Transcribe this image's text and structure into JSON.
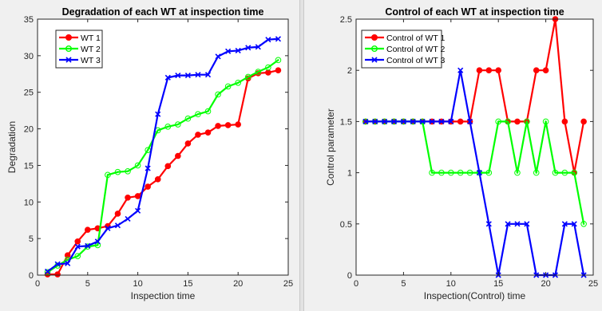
{
  "chart_data": [
    {
      "type": "line",
      "title": "Degradation of each WT at inspection time",
      "xlabel": "Inspection time",
      "ylabel": "Degradation",
      "xlim": [
        0,
        25
      ],
      "ylim": [
        0,
        35
      ],
      "xticks": [
        0,
        5,
        10,
        15,
        20,
        25
      ],
      "yticks": [
        0,
        5,
        10,
        15,
        20,
        25,
        30,
        35
      ],
      "legend_position": "top-left",
      "x": [
        1,
        2,
        3,
        4,
        5,
        6,
        7,
        8,
        9,
        10,
        11,
        12,
        13,
        14,
        15,
        16,
        17,
        18,
        19,
        20,
        21,
        22,
        23,
        24
      ],
      "series": [
        {
          "name": "WT 1",
          "color": "#ff0000",
          "marker": "circle",
          "values": [
            0.1,
            0.1,
            2.7,
            4.6,
            6.2,
            6.4,
            6.7,
            8.4,
            10.6,
            10.8,
            12.1,
            13.1,
            14.9,
            16.3,
            18.0,
            19.2,
            19.5,
            20.4,
            20.5,
            20.6,
            26.9,
            27.6,
            27.7,
            28.0
          ]
        },
        {
          "name": "WT 2",
          "color": "#00ff00",
          "marker": "circle",
          "values": [
            0.4,
            1.3,
            2.1,
            2.6,
            3.9,
            4.1,
            13.7,
            14.1,
            14.2,
            15.0,
            17.1,
            19.8,
            20.3,
            20.6,
            21.4,
            22.0,
            22.4,
            24.7,
            25.8,
            26.3,
            27.1,
            27.8,
            28.4,
            29.4
          ]
        },
        {
          "name": "WT 3",
          "color": "#0000ff",
          "marker": "x",
          "values": [
            0.5,
            1.5,
            1.6,
            3.9,
            4.0,
            4.6,
            6.4,
            6.8,
            7.7,
            8.8,
            14.6,
            22.0,
            27.0,
            27.3,
            27.3,
            27.4,
            27.4,
            29.9,
            30.6,
            30.7,
            31.1,
            31.2,
            32.2,
            32.3
          ]
        }
      ]
    },
    {
      "type": "line",
      "title": "Control of each WT at inspection time",
      "xlabel": "Inspection(Control) time",
      "ylabel": "Control parameter",
      "xlim": [
        0,
        25
      ],
      "ylim": [
        0,
        2.5
      ],
      "xticks": [
        0,
        5,
        10,
        15,
        20,
        25
      ],
      "yticks": [
        0,
        0.5,
        1,
        1.5,
        2,
        2.5
      ],
      "legend_position": "top-left",
      "x": [
        1,
        2,
        3,
        4,
        5,
        6,
        7,
        8,
        9,
        10,
        11,
        12,
        13,
        14,
        15,
        16,
        17,
        18,
        19,
        20,
        21,
        22,
        23,
        24
      ],
      "series": [
        {
          "name": "Control of WT 1",
          "color": "#ff0000",
          "marker": "circle",
          "values": [
            1.5,
            1.5,
            1.5,
            1.5,
            1.5,
            1.5,
            1.5,
            1.5,
            1.5,
            1.5,
            1.5,
            1.5,
            2,
            2,
            2,
            1.5,
            1.5,
            1.5,
            2,
            2,
            2.5,
            1.5,
            1,
            1.5
          ]
        },
        {
          "name": "Control of WT 2",
          "color": "#00ff00",
          "marker": "circle",
          "values": [
            1.5,
            1.5,
            1.5,
            1.5,
            1.5,
            1.5,
            1.5,
            1,
            1,
            1,
            1,
            1,
            1,
            1,
            1.5,
            1.5,
            1,
            1.5,
            1,
            1.5,
            1,
            1,
            1,
            0.5
          ]
        },
        {
          "name": "Control of WT 3",
          "color": "#0000ff",
          "marker": "x",
          "values": [
            1.5,
            1.5,
            1.5,
            1.5,
            1.5,
            1.5,
            1.5,
            1.5,
            1.5,
            1.5,
            2,
            1.5,
            1,
            0.5,
            0,
            0.5,
            0.5,
            0.5,
            0,
            0,
            0,
            0.5,
            0.5,
            0
          ]
        }
      ]
    }
  ]
}
